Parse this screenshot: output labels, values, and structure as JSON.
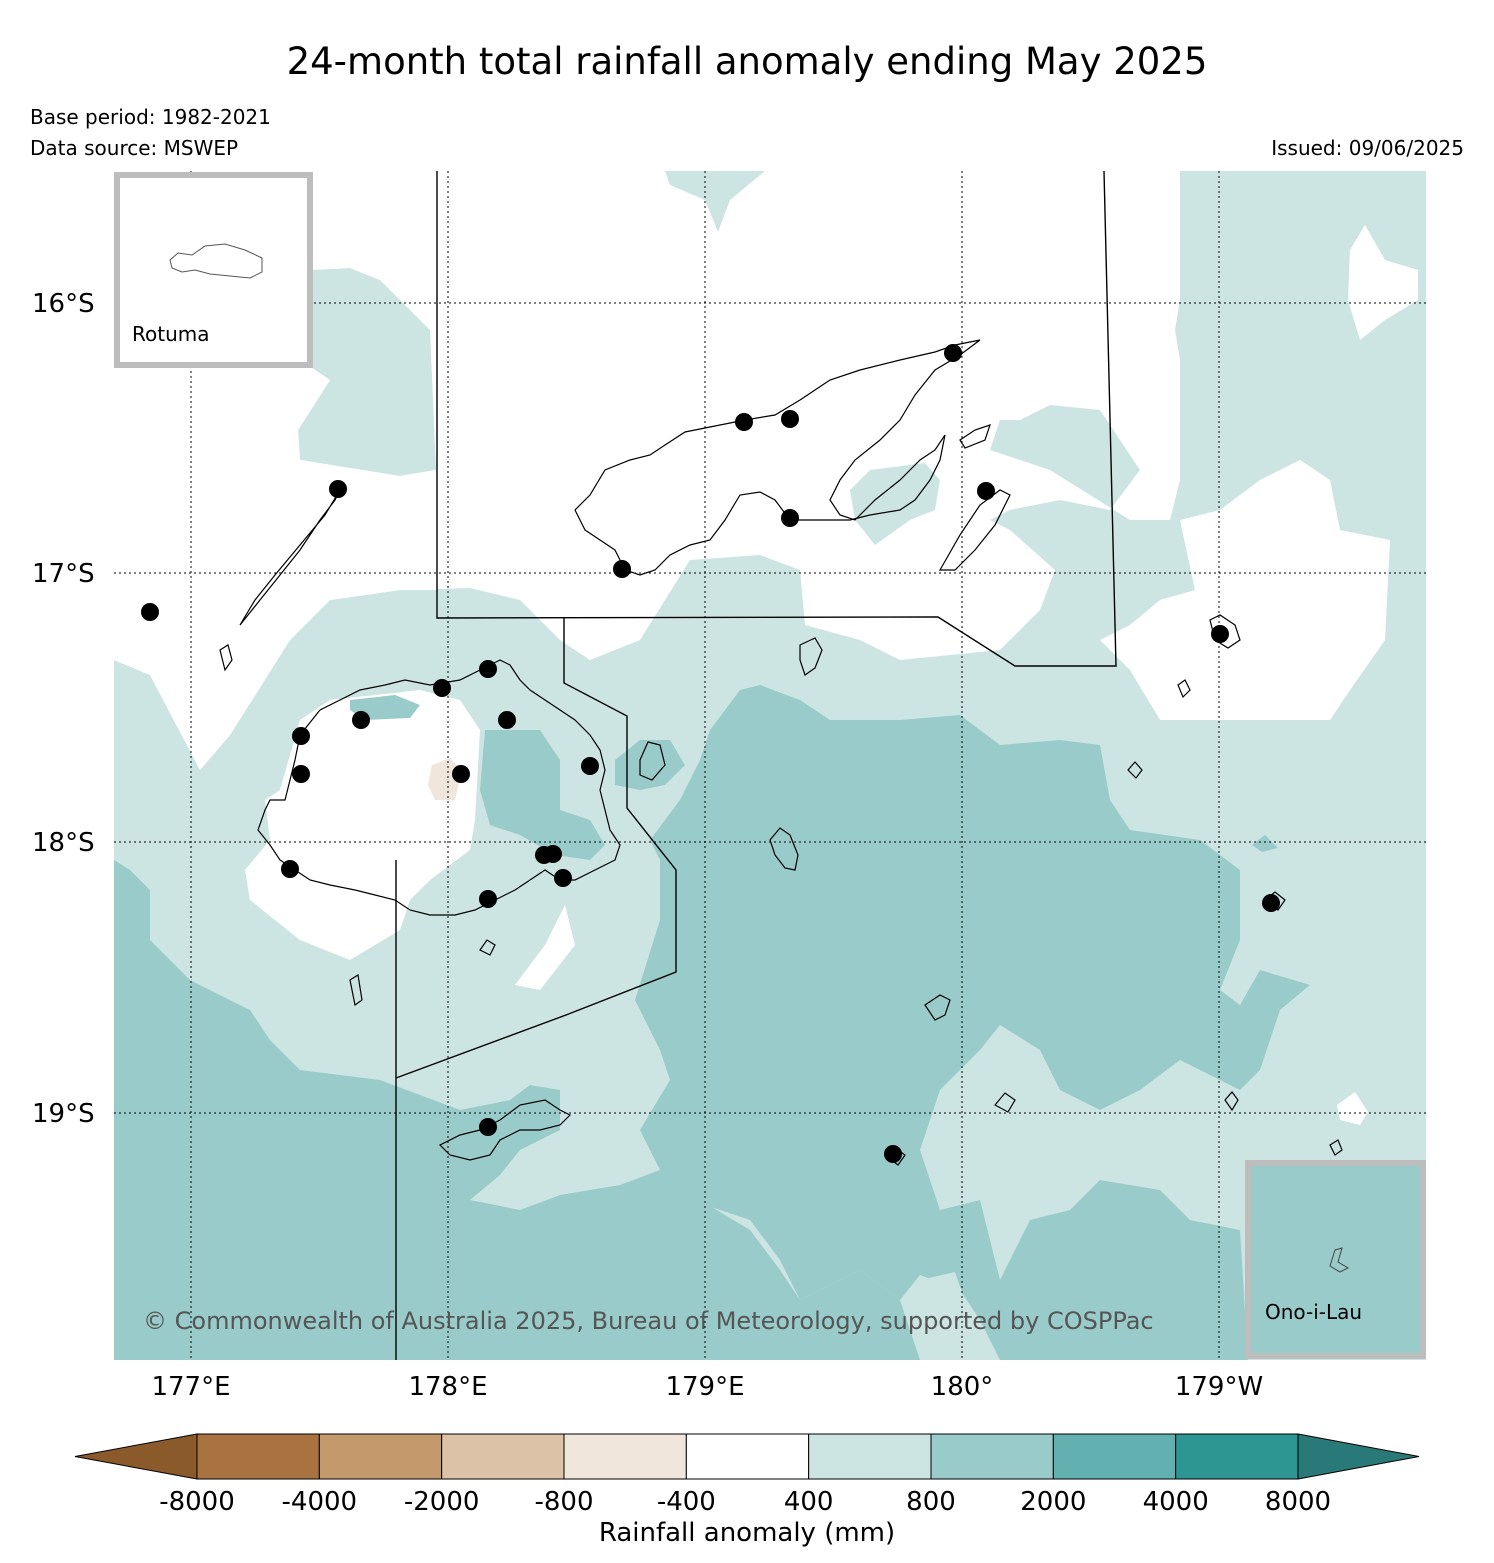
{
  "title": "24-month total rainfall anomaly ending May 2025",
  "base_period": "Base period: 1982-2021",
  "data_source": "Data source: MSWEP",
  "issued": "Issued: 09/06/2025",
  "copyright": "© Commonwealth of Australia 2025, Bureau of Meteorology, supported by COSPPac",
  "lat_labels": [
    "16°S",
    "17°S",
    "18°S",
    "19°S"
  ],
  "lon_labels": [
    "177°E",
    "178°E",
    "179°E",
    "180°",
    "179°W"
  ],
  "insets": {
    "rotuma": "Rotuma",
    "ono_i_lau": "Ono-i-Lau"
  },
  "colorbar": {
    "title": "Rainfall anomaly (mm)",
    "tick_labels": [
      "-8000",
      "-4000",
      "-2000",
      "-800",
      "-400",
      "400",
      "800",
      "2000",
      "4000",
      "8000"
    ],
    "colors": [
      "#8b5a2b",
      "#a87341",
      "#c49a6c",
      "#dcc3a8",
      "#f1e6dc",
      "#ffffff",
      "#cce5e3",
      "#9acbcb",
      "#63b0b0",
      "#2e9692",
      "#297978"
    ]
  },
  "colors": {
    "light_teal": "#cce5e3",
    "mid_teal": "#9acbcb",
    "light_tan": "#f1e6dc",
    "inset_border": "#bdbdbd"
  }
}
